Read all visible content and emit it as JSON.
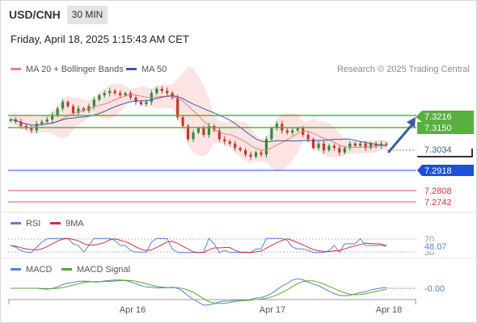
{
  "header": {
    "symbol": "USD/CNH",
    "timeframe": "30 MIN",
    "datetime": "Friday, April 18, 2025 1:15:43 AM CET"
  },
  "legend": {
    "ma20_label": "MA 20 + Bollinger Bands",
    "ma50_label": "MA 50",
    "credit": "Research © 2025 Trading Central",
    "rsi_label": "RSI",
    "rsi_ma_label": "9MA",
    "macd_label": "MACD",
    "macd_signal_label": "MACD Signal"
  },
  "colors": {
    "up_candle": "#2e8b3a",
    "down_candle": "#c0392b",
    "ma20": "#f08080",
    "ma50": "#3b5ba5",
    "bollinger_fill": "#fde3e3",
    "resistance": "#58b040",
    "support_primary": "#1f4fd8",
    "support_secondary": "#e05555",
    "arrow": "#3b5ba5",
    "rsi": "#5b7fd6",
    "rsi_ma": "#d0303a",
    "macd": "#5b7fd6",
    "macd_signal": "#54a830"
  },
  "chart_data": {
    "type": "candlestick",
    "x_ticks": [
      "Apr 16",
      "Apr 17",
      "Apr 18"
    ],
    "price_axis_ticks": [
      "7.3216",
      "7.3150",
      "7.3034",
      "7.2918",
      "7.2808",
      "7.2742"
    ],
    "ylim": [
      7.27,
      7.333
    ],
    "current_price": 7.3034,
    "levels": [
      {
        "label": "7.3216",
        "value": 7.3216,
        "type": "resistance"
      },
      {
        "label": "7.3150",
        "value": 7.315,
        "type": "resistance"
      },
      {
        "label": "7.2918",
        "value": 7.2918,
        "type": "support"
      },
      {
        "label": "7.2808",
        "value": 7.2808,
        "type": "support"
      },
      {
        "label": "7.2742",
        "value": 7.2742,
        "type": "support"
      }
    ],
    "forecast": {
      "from": 7.3034,
      "to": 7.3216
    },
    "close": [
      7.315,
      7.314,
      7.312,
      7.311,
      7.31,
      7.313,
      7.314,
      7.315,
      7.317,
      7.32,
      7.323,
      7.321,
      7.318,
      7.32,
      7.319,
      7.321,
      7.324,
      7.326,
      7.327,
      7.328,
      7.327,
      7.326,
      7.327,
      7.325,
      7.323,
      7.322,
      7.323,
      7.327,
      7.329,
      7.328,
      7.327,
      7.325,
      7.316,
      7.312,
      7.306,
      7.309,
      7.311,
      7.308,
      7.312,
      7.31,
      7.306,
      7.305,
      7.304,
      7.302,
      7.301,
      7.299,
      7.298,
      7.3,
      7.299,
      7.306,
      7.311,
      7.313,
      7.31,
      7.309,
      7.31,
      7.311,
      7.308,
      7.306,
      7.302,
      7.304,
      7.301,
      7.303,
      7.302,
      7.3,
      7.302,
      7.304,
      7.303,
      7.304,
      7.302,
      7.304,
      7.303,
      7.304,
      7.3034
    ],
    "rsi": {
      "labels": [
        "70",
        "48.07",
        "30"
      ],
      "value": 48.07
    },
    "macd": {
      "value": -0.0,
      "label": "-0.00"
    }
  }
}
